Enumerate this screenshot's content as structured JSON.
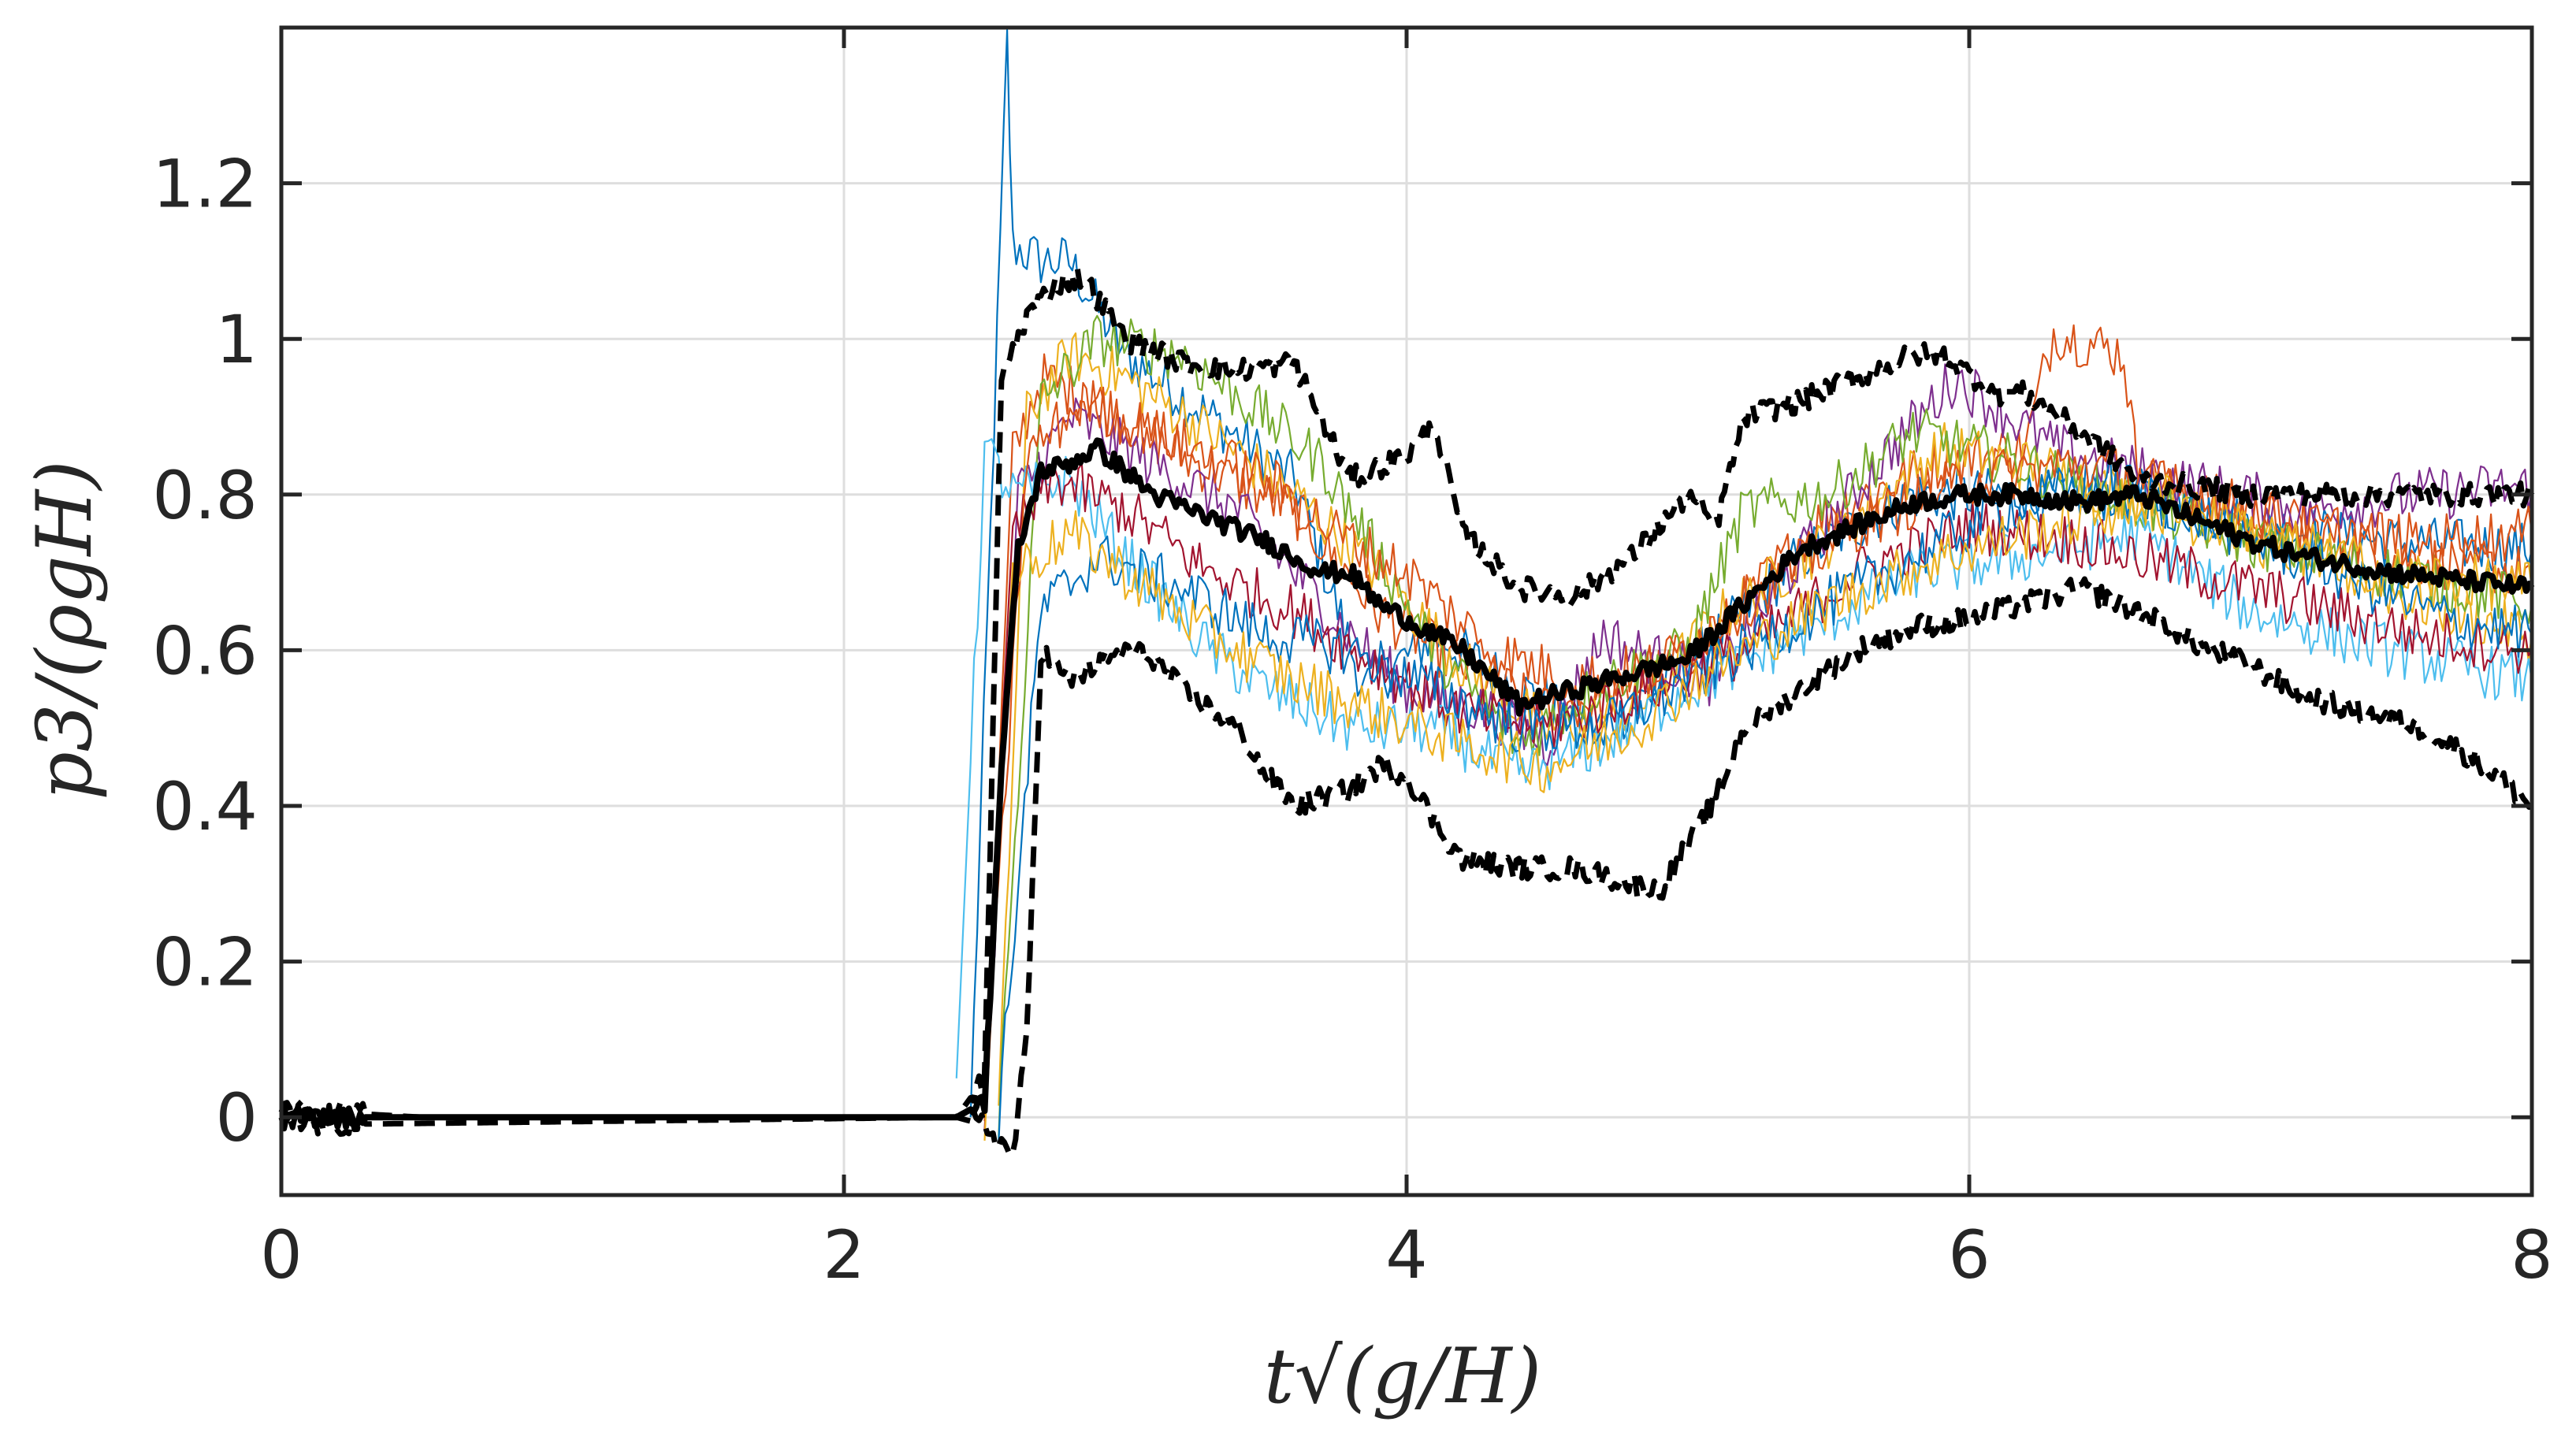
{
  "chart_data": {
    "type": "line",
    "title": "",
    "xlabel": "t√(g/H)",
    "ylabel": "p3/(ρgH)",
    "xlim": [
      0,
      8
    ],
    "ylim": [
      -0.1,
      1.4
    ],
    "grid": true,
    "legend": "none",
    "x_ticks": [
      "0",
      "2",
      "4",
      "6",
      "8"
    ],
    "y_ticks": [
      "0",
      "0.2",
      "0.4",
      "0.6",
      "0.8",
      "1",
      "1.2"
    ],
    "colors": {
      "axis": "#262626",
      "grid": "#dedede",
      "envelope": "#000000",
      "runs": [
        "#0072BD",
        "#D95319",
        "#EDB120",
        "#7E2F8E",
        "#77AC30",
        "#4DBEEE",
        "#A2142F"
      ]
    },
    "envelopes": [
      {
        "role": "upper",
        "points": [
          [
            0,
            0.01
          ],
          [
            0.5,
            0
          ],
          [
            2.4,
            0
          ],
          [
            2.5,
            0.05
          ],
          [
            2.56,
            0.95
          ],
          [
            2.65,
            1.03
          ],
          [
            2.75,
            1.07
          ],
          [
            2.85,
            1.08
          ],
          [
            3.0,
            1.0
          ],
          [
            3.2,
            0.97
          ],
          [
            3.4,
            0.96
          ],
          [
            3.6,
            0.97
          ],
          [
            3.8,
            0.82
          ],
          [
            4.0,
            0.85
          ],
          [
            4.1,
            0.89
          ],
          [
            4.2,
            0.75
          ],
          [
            4.4,
            0.68
          ],
          [
            4.6,
            0.67
          ],
          [
            4.8,
            0.72
          ],
          [
            5.0,
            0.8
          ],
          [
            5.1,
            0.76
          ],
          [
            5.2,
            0.9
          ],
          [
            5.4,
            0.92
          ],
          [
            5.6,
            0.95
          ],
          [
            5.8,
            0.98
          ],
          [
            5.9,
            0.98
          ],
          [
            6.1,
            0.93
          ],
          [
            6.2,
            0.93
          ],
          [
            6.4,
            0.88
          ],
          [
            6.6,
            0.82
          ],
          [
            6.8,
            0.81
          ],
          [
            7.0,
            0.8
          ],
          [
            7.2,
            0.8
          ],
          [
            7.5,
            0.8
          ],
          [
            8.0,
            0.8
          ]
        ]
      },
      {
        "role": "mean",
        "points": [
          [
            0,
            0
          ],
          [
            2.4,
            0
          ],
          [
            2.5,
            0.02
          ],
          [
            2.56,
            0.45
          ],
          [
            2.62,
            0.73
          ],
          [
            2.7,
            0.83
          ],
          [
            2.8,
            0.84
          ],
          [
            2.9,
            0.86
          ],
          [
            3.1,
            0.8
          ],
          [
            3.3,
            0.77
          ],
          [
            3.5,
            0.74
          ],
          [
            3.7,
            0.7
          ],
          [
            3.8,
            0.7
          ],
          [
            3.9,
            0.66
          ],
          [
            4.0,
            0.64
          ],
          [
            4.1,
            0.62
          ],
          [
            4.2,
            0.6
          ],
          [
            4.4,
            0.53
          ],
          [
            4.6,
            0.55
          ],
          [
            4.8,
            0.57
          ],
          [
            5.0,
            0.59
          ],
          [
            5.2,
            0.66
          ],
          [
            5.4,
            0.73
          ],
          [
            5.6,
            0.76
          ],
          [
            5.8,
            0.79
          ],
          [
            6.0,
            0.8
          ],
          [
            6.2,
            0.8
          ],
          [
            6.4,
            0.79
          ],
          [
            6.6,
            0.8
          ],
          [
            6.8,
            0.77
          ],
          [
            7.0,
            0.74
          ],
          [
            7.2,
            0.72
          ],
          [
            7.5,
            0.7
          ],
          [
            8.0,
            0.68
          ]
        ]
      },
      {
        "role": "lower",
        "points": [
          [
            0,
            -0.01
          ],
          [
            2.4,
            0
          ],
          [
            2.5,
            -0.01
          ],
          [
            2.6,
            -0.05
          ],
          [
            2.65,
            0.1
          ],
          [
            2.7,
            0.6
          ],
          [
            2.8,
            0.56
          ],
          [
            3.0,
            0.6
          ],
          [
            3.1,
            0.59
          ],
          [
            3.2,
            0.55
          ],
          [
            3.4,
            0.5
          ],
          [
            3.5,
            0.44
          ],
          [
            3.6,
            0.4
          ],
          [
            3.8,
            0.42
          ],
          [
            3.9,
            0.45
          ],
          [
            4.0,
            0.44
          ],
          [
            4.1,
            0.38
          ],
          [
            4.2,
            0.33
          ],
          [
            4.4,
            0.32
          ],
          [
            4.6,
            0.32
          ],
          [
            4.8,
            0.3
          ],
          [
            4.9,
            0.29
          ],
          [
            5.0,
            0.35
          ],
          [
            5.1,
            0.41
          ],
          [
            5.2,
            0.5
          ],
          [
            5.4,
            0.55
          ],
          [
            5.6,
            0.6
          ],
          [
            5.8,
            0.63
          ],
          [
            6.0,
            0.64
          ],
          [
            6.2,
            0.66
          ],
          [
            6.4,
            0.68
          ],
          [
            6.6,
            0.65
          ],
          [
            6.8,
            0.61
          ],
          [
            7.0,
            0.58
          ],
          [
            7.2,
            0.54
          ],
          [
            7.4,
            0.52
          ],
          [
            7.6,
            0.5
          ],
          [
            7.8,
            0.46
          ],
          [
            8.0,
            0.4
          ]
        ]
      }
    ],
    "runs": [
      {
        "peak_x": 2.6,
        "peak_y": 1.38,
        "points": [
          [
            2.45,
            0
          ],
          [
            2.58,
            1.38
          ],
          [
            2.6,
            1.12
          ],
          [
            2.7,
            1.1
          ],
          [
            2.8,
            1.1
          ],
          [
            3.0,
            0.98
          ],
          [
            3.3,
            0.9
          ],
          [
            3.6,
            0.82
          ],
          [
            3.85,
            0.55
          ],
          [
            4.1,
            0.62
          ],
          [
            4.4,
            0.55
          ],
          [
            4.7,
            0.5
          ],
          [
            5.0,
            0.58
          ],
          [
            5.4,
            0.72
          ],
          [
            5.8,
            0.8
          ],
          [
            6.2,
            0.8
          ],
          [
            6.6,
            0.8
          ],
          [
            7.0,
            0.76
          ],
          [
            7.5,
            0.74
          ],
          [
            8.0,
            0.73
          ]
        ]
      },
      {
        "points": [
          [
            2.5,
            0
          ],
          [
            2.6,
            0.85
          ],
          [
            2.7,
            0.95
          ],
          [
            2.9,
            0.92
          ],
          [
            3.2,
            0.85
          ],
          [
            3.6,
            0.78
          ],
          [
            3.9,
            0.65
          ],
          [
            4.2,
            0.58
          ],
          [
            4.5,
            0.52
          ],
          [
            4.8,
            0.55
          ],
          [
            5.1,
            0.62
          ],
          [
            5.5,
            0.78
          ],
          [
            5.9,
            0.84
          ],
          [
            6.2,
            0.86
          ],
          [
            6.3,
            1.01
          ],
          [
            6.55,
            0.98
          ],
          [
            6.6,
            0.82
          ],
          [
            7.0,
            0.78
          ],
          [
            7.5,
            0.72
          ],
          [
            8.0,
            0.7
          ]
        ]
      },
      {
        "points": [
          [
            2.55,
            0
          ],
          [
            2.65,
            0.9
          ],
          [
            2.8,
            0.98
          ],
          [
            3.0,
            0.95
          ],
          [
            3.3,
            0.88
          ],
          [
            3.6,
            0.8
          ],
          [
            3.9,
            0.7
          ],
          [
            4.2,
            0.58
          ],
          [
            4.5,
            0.5
          ],
          [
            4.8,
            0.52
          ],
          [
            5.1,
            0.64
          ],
          [
            5.5,
            0.74
          ],
          [
            5.9,
            0.86
          ],
          [
            6.3,
            0.83
          ],
          [
            6.7,
            0.78
          ],
          [
            7.2,
            0.72
          ],
          [
            7.6,
            0.66
          ],
          [
            8.0,
            0.62
          ]
        ]
      },
      {
        "points": [
          [
            2.5,
            0
          ],
          [
            2.62,
            0.8
          ],
          [
            2.8,
            0.9
          ],
          [
            3.1,
            0.84
          ],
          [
            3.4,
            0.78
          ],
          [
            3.8,
            0.62
          ],
          [
            4.0,
            0.55
          ],
          [
            4.3,
            0.52
          ],
          [
            4.5,
            0.48
          ],
          [
            4.7,
            0.62
          ],
          [
            4.8,
            0.6
          ],
          [
            5.1,
            0.56
          ],
          [
            5.4,
            0.72
          ],
          [
            5.7,
            0.85
          ],
          [
            5.95,
            0.95
          ],
          [
            6.3,
            0.86
          ],
          [
            6.7,
            0.82
          ],
          [
            7.2,
            0.78
          ],
          [
            7.6,
            0.8
          ],
          [
            8.0,
            0.81
          ]
        ]
      },
      {
        "points": [
          [
            2.55,
            0
          ],
          [
            2.7,
            0.92
          ],
          [
            2.9,
            1.0
          ],
          [
            3.2,
            0.98
          ],
          [
            3.5,
            0.9
          ],
          [
            3.7,
            0.84
          ],
          [
            3.9,
            0.72
          ],
          [
            4.1,
            0.6
          ],
          [
            4.4,
            0.48
          ],
          [
            4.7,
            0.56
          ],
          [
            5.0,
            0.6
          ],
          [
            5.2,
            0.78
          ],
          [
            5.5,
            0.8
          ],
          [
            5.8,
            0.88
          ],
          [
            6.1,
            0.85
          ],
          [
            6.5,
            0.8
          ],
          [
            7.0,
            0.74
          ],
          [
            7.5,
            0.7
          ],
          [
            8.0,
            0.66
          ]
        ]
      },
      {
        "points": [
          [
            2.4,
            0.05
          ],
          [
            2.5,
            0.86
          ],
          [
            2.6,
            0.8
          ],
          [
            2.8,
            0.82
          ],
          [
            3.0,
            0.72
          ],
          [
            3.3,
            0.6
          ],
          [
            3.5,
            0.55
          ],
          [
            3.8,
            0.5
          ],
          [
            4.1,
            0.5
          ],
          [
            4.4,
            0.44
          ],
          [
            4.7,
            0.48
          ],
          [
            5.0,
            0.55
          ],
          [
            5.4,
            0.62
          ],
          [
            5.8,
            0.7
          ],
          [
            6.2,
            0.72
          ],
          [
            6.6,
            0.75
          ],
          [
            7.0,
            0.65
          ],
          [
            7.5,
            0.6
          ],
          [
            8.0,
            0.56
          ]
        ]
      },
      {
        "points": [
          [
            2.5,
            0
          ],
          [
            2.6,
            0.75
          ],
          [
            2.75,
            0.82
          ],
          [
            3.0,
            0.78
          ],
          [
            3.3,
            0.7
          ],
          [
            3.6,
            0.65
          ],
          [
            3.9,
            0.58
          ],
          [
            4.2,
            0.52
          ],
          [
            4.5,
            0.5
          ],
          [
            4.8,
            0.54
          ],
          [
            5.2,
            0.6
          ],
          [
            5.6,
            0.7
          ],
          [
            6.0,
            0.76
          ],
          [
            6.4,
            0.74
          ],
          [
            6.8,
            0.7
          ],
          [
            7.2,
            0.66
          ],
          [
            7.6,
            0.62
          ],
          [
            8.0,
            0.6
          ]
        ]
      },
      {
        "points": [
          [
            2.55,
            0
          ],
          [
            2.7,
            0.65
          ],
          [
            2.9,
            0.72
          ],
          [
            3.2,
            0.68
          ],
          [
            3.5,
            0.62
          ],
          [
            3.8,
            0.6
          ],
          [
            4.1,
            0.55
          ],
          [
            4.4,
            0.5
          ],
          [
            4.7,
            0.5
          ],
          [
            5.0,
            0.56
          ],
          [
            5.3,
            0.62
          ],
          [
            5.7,
            0.7
          ],
          [
            6.1,
            0.78
          ],
          [
            6.5,
            0.82
          ],
          [
            6.9,
            0.76
          ],
          [
            7.3,
            0.7
          ],
          [
            7.7,
            0.64
          ],
          [
            8.0,
            0.62
          ]
        ]
      },
      {
        "points": [
          [
            2.5,
            0
          ],
          [
            2.65,
            0.85
          ],
          [
            2.85,
            0.92
          ],
          [
            3.1,
            0.88
          ],
          [
            3.5,
            0.82
          ],
          [
            3.75,
            0.75
          ],
          [
            4.0,
            0.7
          ],
          [
            4.3,
            0.6
          ],
          [
            4.6,
            0.56
          ],
          [
            4.9,
            0.58
          ],
          [
            5.2,
            0.66
          ],
          [
            5.6,
            0.76
          ],
          [
            6.0,
            0.82
          ],
          [
            6.4,
            0.84
          ],
          [
            6.8,
            0.8
          ],
          [
            7.2,
            0.76
          ],
          [
            7.6,
            0.74
          ],
          [
            8.0,
            0.75
          ]
        ]
      },
      {
        "points": [
          [
            2.5,
            0
          ],
          [
            2.6,
            0.7
          ],
          [
            2.8,
            0.75
          ],
          [
            3.0,
            0.7
          ],
          [
            3.3,
            0.62
          ],
          [
            3.6,
            0.56
          ],
          [
            3.9,
            0.52
          ],
          [
            4.2,
            0.48
          ],
          [
            4.5,
            0.45
          ],
          [
            4.8,
            0.5
          ],
          [
            5.1,
            0.58
          ],
          [
            5.5,
            0.66
          ],
          [
            5.9,
            0.72
          ],
          [
            6.3,
            0.76
          ],
          [
            6.7,
            0.8
          ],
          [
            7.1,
            0.74
          ],
          [
            7.5,
            0.7
          ],
          [
            8.0,
            0.68
          ]
        ]
      }
    ]
  }
}
